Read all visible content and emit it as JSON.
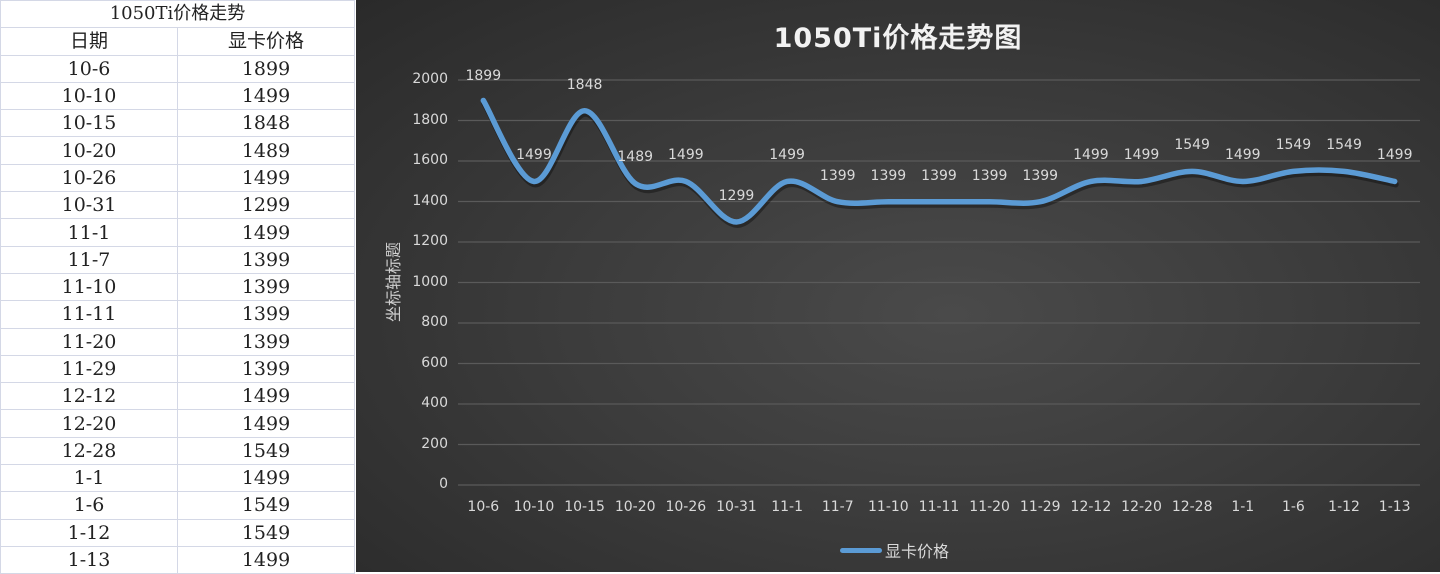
{
  "sheet": {
    "title": "1050Ti价格走势",
    "headers": [
      "日期",
      "显卡价格"
    ],
    "rows": [
      [
        "10-6",
        "1899"
      ],
      [
        "10-10",
        "1499"
      ],
      [
        "10-15",
        "1848"
      ],
      [
        "10-20",
        "1489"
      ],
      [
        "10-26",
        "1499"
      ],
      [
        "10-31",
        "1299"
      ],
      [
        "11-1",
        "1499"
      ],
      [
        "11-7",
        "1399"
      ],
      [
        "11-10",
        "1399"
      ],
      [
        "11-11",
        "1399"
      ],
      [
        "11-20",
        "1399"
      ],
      [
        "11-29",
        "1399"
      ],
      [
        "12-12",
        "1499"
      ],
      [
        "12-20",
        "1499"
      ],
      [
        "12-28",
        "1549"
      ],
      [
        "1-1",
        "1499"
      ],
      [
        "1-6",
        "1549"
      ],
      [
        "1-12",
        "1549"
      ],
      [
        "1-13",
        "1499"
      ]
    ]
  },
  "colors": {
    "line": "#5b9bd5",
    "gridline": "#5a5a5a",
    "chart_bg": "#3c3c3c",
    "text": "#d9d9d9"
  },
  "chart_data": {
    "type": "line",
    "title": "1050Ti价格走势图",
    "xlabel": "",
    "ylabel": "坐标轴标题",
    "categories": [
      "10-6",
      "10-10",
      "10-15",
      "10-20",
      "10-26",
      "10-31",
      "11-1",
      "11-7",
      "11-10",
      "11-11",
      "11-20",
      "11-29",
      "12-12",
      "12-20",
      "12-28",
      "1-1",
      "1-6",
      "1-12",
      "1-13"
    ],
    "series": [
      {
        "name": "显卡价格",
        "values": [
          1899,
          1499,
          1848,
          1489,
          1499,
          1299,
          1499,
          1399,
          1399,
          1399,
          1399,
          1399,
          1499,
          1499,
          1549,
          1499,
          1549,
          1549,
          1499
        ]
      }
    ],
    "ylim": [
      0,
      2000
    ],
    "yticks": [
      0,
      200,
      400,
      600,
      800,
      1000,
      1200,
      1400,
      1600,
      1800,
      2000
    ],
    "grid": true,
    "smooth": true,
    "data_labels": true,
    "legend_position": "bottom"
  }
}
